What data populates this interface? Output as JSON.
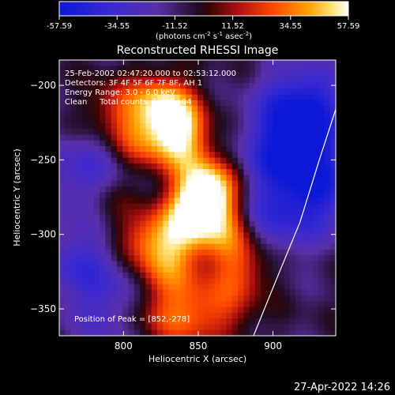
{
  "colorbar": {
    "ticks": [
      "-57.59",
      "-34.55",
      "-11.52",
      "11.52",
      "34.55",
      "57.59"
    ],
    "range": [
      -57.59,
      57.59
    ],
    "units_text": "(photons cm",
    "units_sup1": "-2",
    "units_mid1": " s",
    "units_sup2": "-1",
    "units_mid2": " asec",
    "units_sup3": "-2",
    "units_end": ")"
  },
  "info": {
    "time_range": "25-Feb-2002 02:47:20.000 to 02:53:12.000",
    "detectors": "Detectors: 3F 4F 5F 6F 7F 8F, AH 1",
    "energy_range": "Energy Range: 3.0 - 6.0 keV",
    "clean": "Clean     Total counts: 1.40E+04",
    "peak": "Position of Peak = [852,-278]"
  },
  "footer": {
    "timestamp": "27-Apr-2022 14:26"
  },
  "chart_data": {
    "type": "heatmap",
    "title": "Reconstructed RHESSI Image",
    "xlabel": "Heliocentric X (arcsec)",
    "ylabel": "Heliocentric Y (arcsec)",
    "xlim": [
      757,
      942
    ],
    "ylim": [
      -368,
      -183
    ],
    "xticks": [
      800,
      850,
      900
    ],
    "yticks": [
      -200,
      -250,
      -300,
      -350
    ],
    "colormap": "blue-purple-black-red-orange-yellow-white",
    "value_range": [
      -57.59,
      57.59
    ],
    "peak": [
      852,
      -278
    ],
    "limb_curve": [
      [
        942,
        -216
      ],
      [
        931,
        -250
      ],
      [
        918,
        -292
      ],
      [
        904,
        -326
      ],
      [
        887,
        -368
      ]
    ],
    "sources": [
      {
        "x": 852,
        "y": -280,
        "value": 57
      },
      {
        "x": 857,
        "y": -268,
        "value": 48
      },
      {
        "x": 838,
        "y": -240,
        "value": 42
      },
      {
        "x": 825,
        "y": -212,
        "value": 40
      },
      {
        "x": 835,
        "y": -222,
        "value": 36
      },
      {
        "x": 838,
        "y": -300,
        "value": 38
      },
      {
        "x": 868,
        "y": -300,
        "value": 34
      },
      {
        "x": 815,
        "y": -303,
        "value": 32
      },
      {
        "x": 827,
        "y": -325,
        "value": 30
      },
      {
        "x": 880,
        "y": -322,
        "value": 30
      },
      {
        "x": 810,
        "y": -238,
        "value": 28
      },
      {
        "x": 795,
        "y": -215,
        "value": 26
      },
      {
        "x": 788,
        "y": -278,
        "value": 18
      },
      {
        "x": 845,
        "y": -345,
        "value": 24
      },
      {
        "x": 818,
        "y": -355,
        "value": 22
      },
      {
        "x": 870,
        "y": -350,
        "value": 22
      },
      {
        "x": 842,
        "y": -365,
        "value": 18
      }
    ],
    "negative_regions": [
      {
        "x": 920,
        "y": -215,
        "value": -45
      },
      {
        "x": 910,
        "y": -245,
        "value": -40
      },
      {
        "x": 932,
        "y": -270,
        "value": -32
      },
      {
        "x": 900,
        "y": -290,
        "value": -25
      },
      {
        "x": 775,
        "y": -262,
        "value": -28
      },
      {
        "x": 770,
        "y": -320,
        "value": -24
      },
      {
        "x": 795,
        "y": -350,
        "value": -20
      }
    ]
  }
}
